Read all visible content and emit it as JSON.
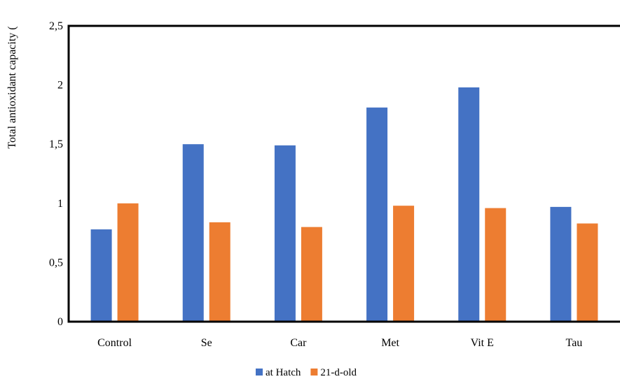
{
  "chart_data": {
    "type": "bar",
    "title": "",
    "xlabel": "",
    "ylabel": "Total antioxidant capacity (",
    "categories": [
      "Control",
      "Se",
      "Car",
      "Met",
      "Vit E",
      "Tau"
    ],
    "series": [
      {
        "name": "at Hatch",
        "color": "#4472C4",
        "values": [
          0.78,
          1.5,
          1.49,
          1.81,
          1.98,
          0.97
        ]
      },
      {
        "name": "21-d-old",
        "color": "#ED7D31",
        "values": [
          1.0,
          0.84,
          0.8,
          0.98,
          0.96,
          0.83
        ]
      }
    ],
    "ylim": [
      0,
      2.5
    ],
    "yticks": [
      "0",
      "0,5",
      "1",
      "1,5",
      "2",
      "2,5"
    ],
    "grid": false,
    "legend_position": "bottom-center"
  }
}
